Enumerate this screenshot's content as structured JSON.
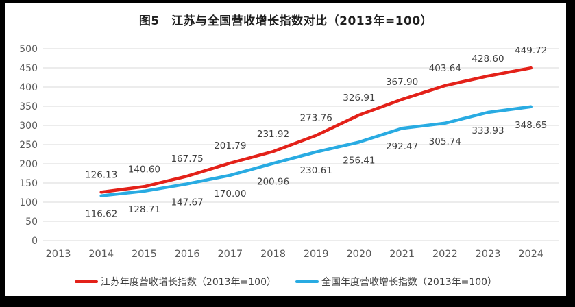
{
  "title": "图5　江苏与全国营收增长指数对比（2013年=100）",
  "chart_data": {
    "type": "line",
    "categories": [
      "2013",
      "2014",
      "2015",
      "2016",
      "2017",
      "2018",
      "2019",
      "2020",
      "2021",
      "2022",
      "2023",
      "2024"
    ],
    "series": [
      {
        "name": "江苏年度营收增长指数（2013年=100）",
        "color": "#E32119",
        "values": [
          null,
          126.13,
          140.6,
          167.75,
          201.79,
          231.92,
          273.76,
          326.91,
          367.9,
          403.64,
          428.6,
          449.72
        ],
        "label_offset": -26
      },
      {
        "name": "全国年度营收增长指数（2013年=100）",
        "color": "#29ABE2",
        "values": [
          null,
          116.62,
          128.71,
          147.67,
          170.0,
          200.96,
          230.61,
          256.41,
          292.47,
          305.74,
          333.93,
          348.65
        ],
        "label_offset": 26
      }
    ],
    "title": "图5　江苏与全国营收增长指数对比（2013年=100）",
    "xlabel": "",
    "ylabel": "",
    "ylim": [
      0,
      500
    ],
    "ytick_step": 50,
    "grid": true,
    "legend_position": "bottom",
    "base_note": "2013年=100",
    "colors": {
      "grid": "#E0E0E0",
      "axis_text": "#595959",
      "data_label": "#404040",
      "title_text": "#1F1F1F",
      "frame_bg": "#000000",
      "plot_bg": "#FFFFFF"
    }
  }
}
